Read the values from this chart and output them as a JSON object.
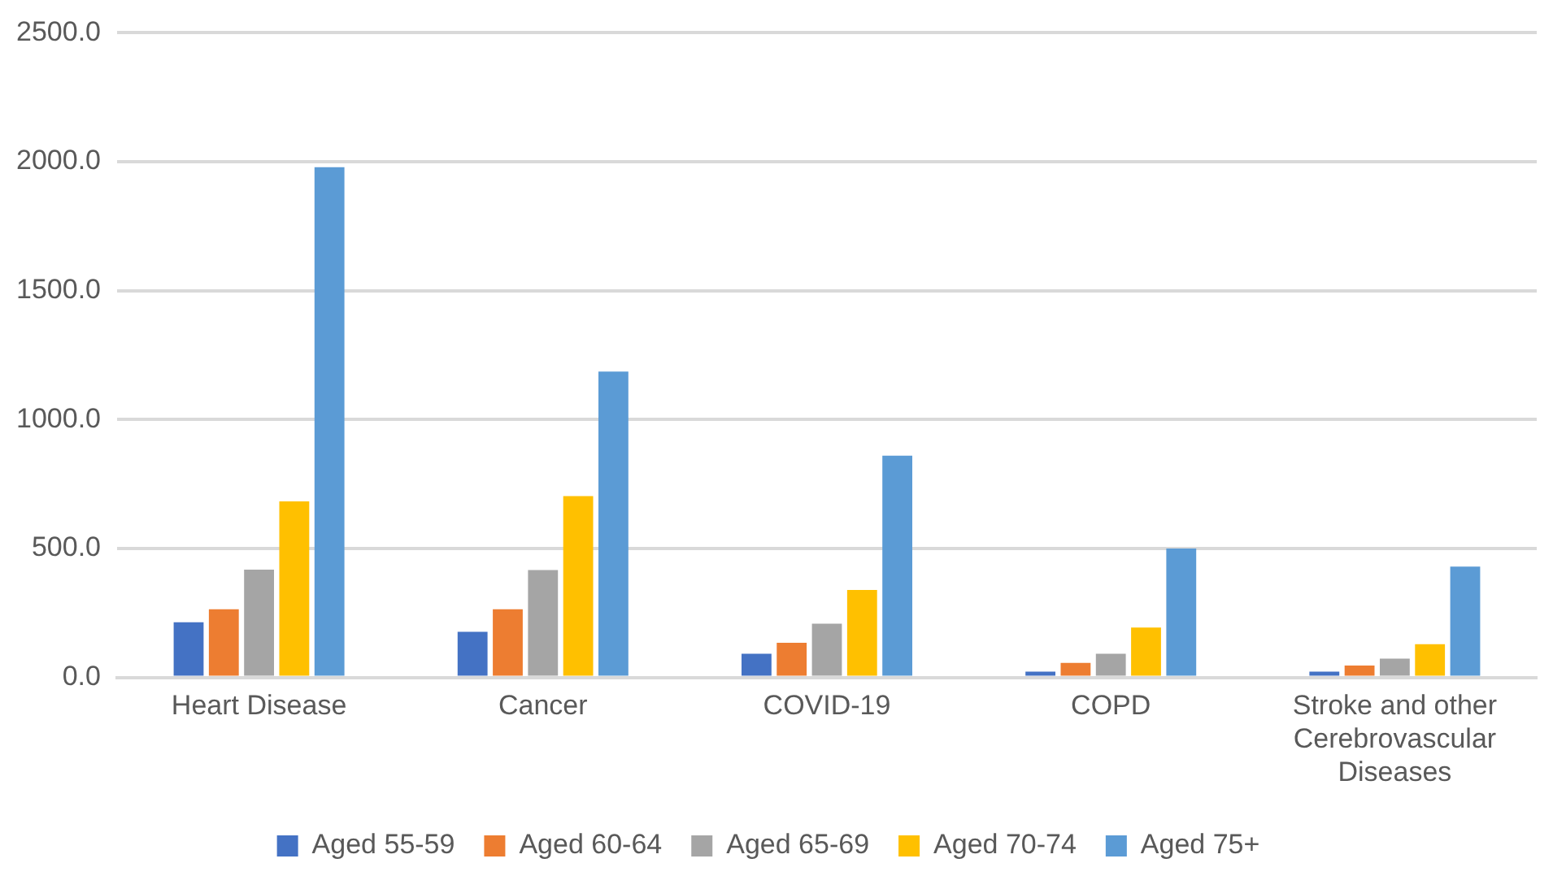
{
  "chart_data": {
    "type": "bar",
    "categories": [
      "Heart Disease",
      "Cancer",
      "COVID-19",
      "COPD",
      "Stroke and other Cerebrovascular Diseases"
    ],
    "series": [
      {
        "name": "Aged 55-59",
        "color": "#4472c4",
        "values": [
          214,
          177,
          92,
          22,
          22
        ]
      },
      {
        "name": "Aged 60-64",
        "color": "#ed7d31",
        "values": [
          264,
          264,
          134,
          56,
          46
        ]
      },
      {
        "name": "Aged 65-69",
        "color": "#a5a5a5",
        "values": [
          418,
          416,
          208,
          92,
          73
        ]
      },
      {
        "name": "Aged 70-74",
        "color": "#ffc000",
        "values": [
          683,
          703,
          339,
          193,
          129
        ]
      },
      {
        "name": "Aged 75+",
        "color": "#5b9bd5",
        "values": [
          1979,
          1186,
          860,
          500,
          430
        ]
      }
    ],
    "ylim": [
      0,
      2500
    ],
    "yticks": [
      {
        "value": 0,
        "label": "0.0"
      },
      {
        "value": 500,
        "label": "500.0"
      },
      {
        "value": 1000,
        "label": "1000.0"
      },
      {
        "value": 1500,
        "label": "1500.0"
      },
      {
        "value": 2000,
        "label": "2000.0"
      },
      {
        "value": 2500,
        "label": "2500.0"
      }
    ],
    "grid": "y",
    "legend": "bottom"
  }
}
